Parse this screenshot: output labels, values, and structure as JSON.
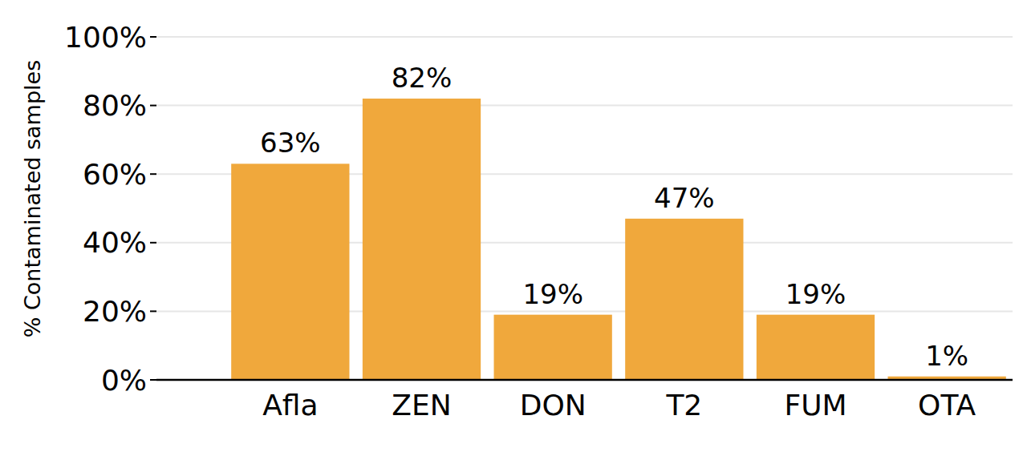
{
  "chart_data": {
    "type": "bar",
    "y_label": "% Contaminated samples",
    "categories": [
      "Afla",
      "ZEN",
      "DON",
      "T2",
      "FUM",
      "OTA"
    ],
    "values": [
      63,
      82,
      19,
      47,
      19,
      1
    ],
    "value_labels": [
      "63%",
      "82%",
      "19%",
      "47%",
      "19%",
      "1%"
    ],
    "color": "#f0a83c",
    "ylim": [
      0,
      100
    ],
    "yticks": [
      {
        "value": 0,
        "label": "0%"
      },
      {
        "value": 20,
        "label": "20%"
      },
      {
        "value": 40,
        "label": "40%"
      },
      {
        "value": 60,
        "label": "60%"
      },
      {
        "value": 80,
        "label": "80%"
      },
      {
        "value": 100,
        "label": "100%"
      }
    ],
    "grid": true,
    "data_labels": true
  }
}
